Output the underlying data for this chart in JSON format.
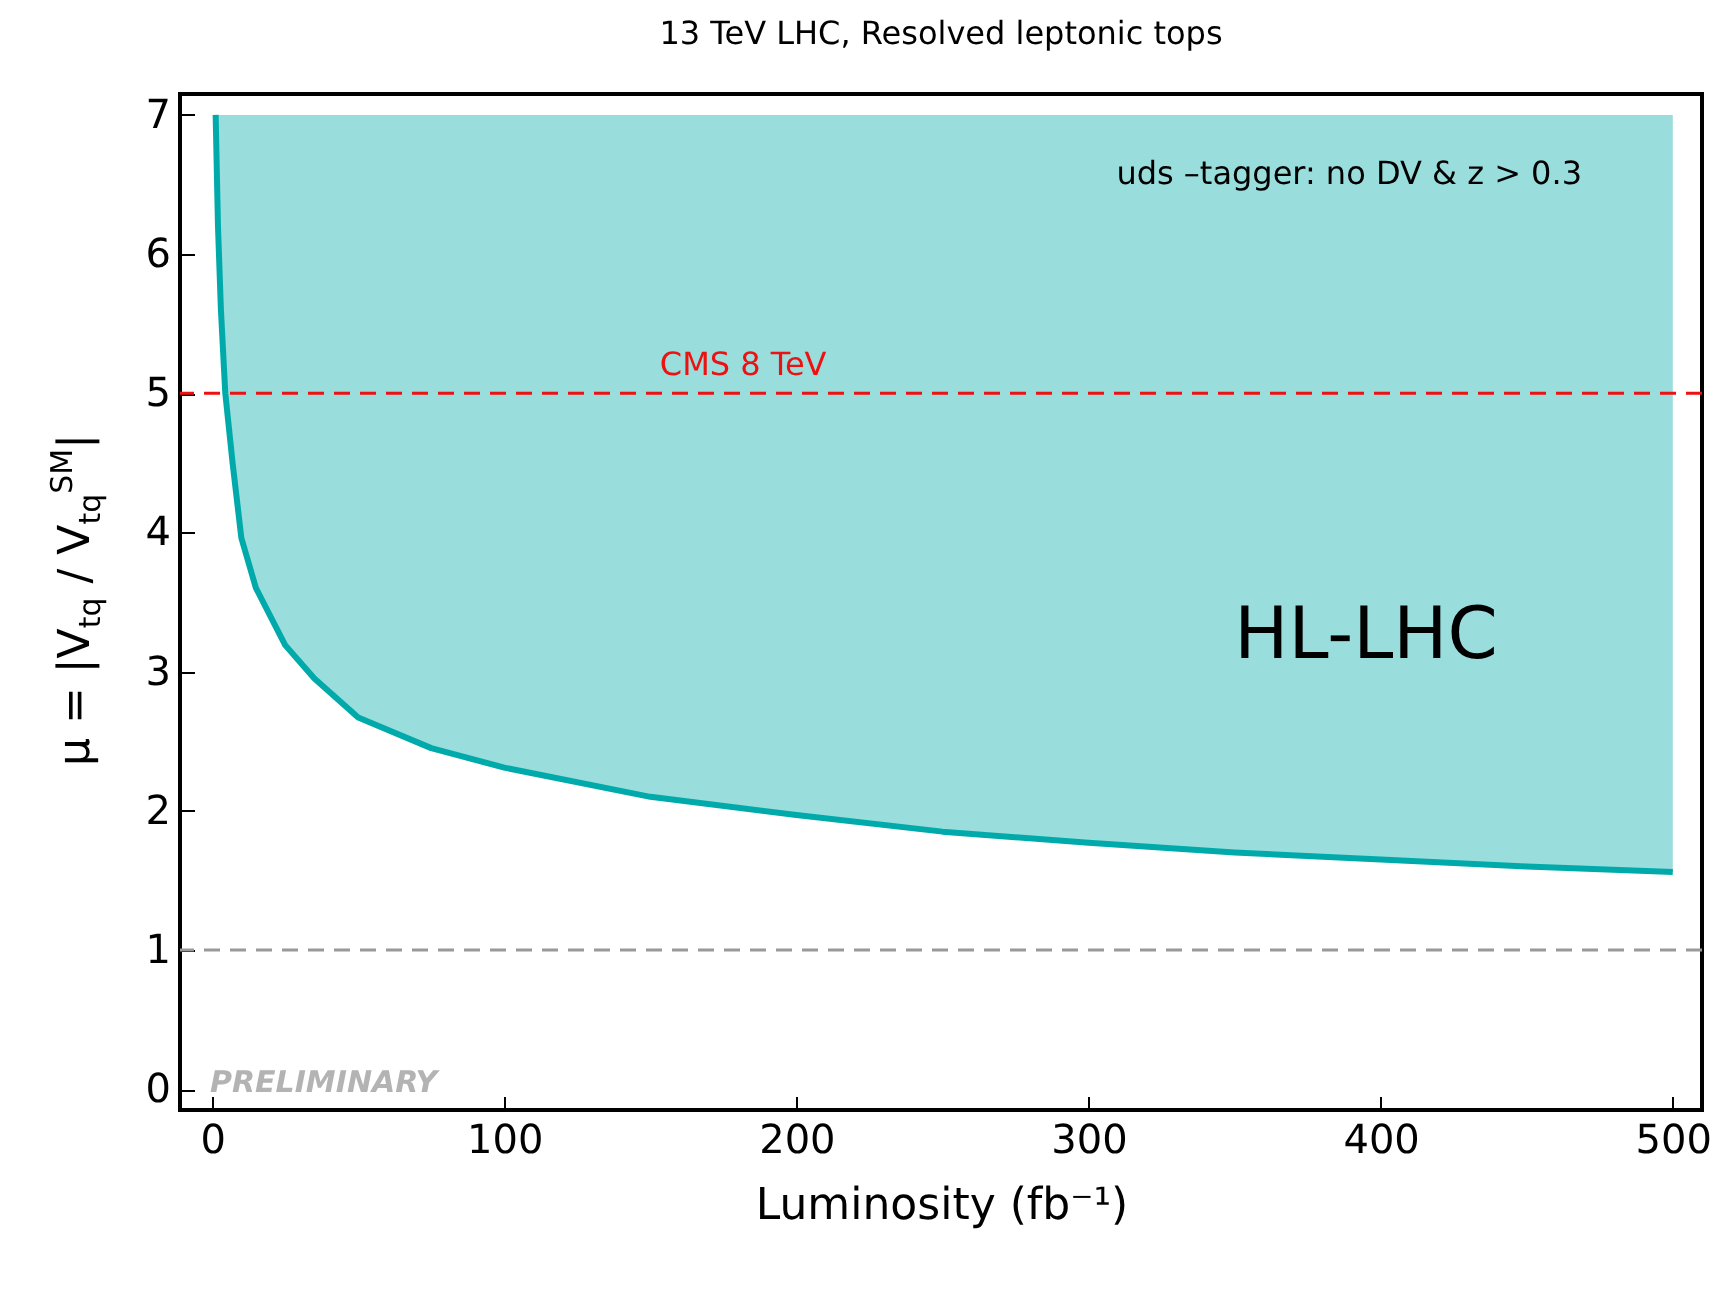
{
  "chart_data": {
    "type": "line",
    "title": "13 TeV  LHC, Resolved leptonic tops",
    "xlabel": "Luminosity (fb⁻¹)",
    "ylabel": "μ = |V$_{tq}$ / V$_{tq}$$^{SM}$|",
    "x": [
      1.2,
      2,
      3,
      4.5,
      7,
      10,
      15,
      25,
      35,
      50,
      75,
      100,
      150,
      200,
      250,
      300,
      350,
      400,
      450,
      500
    ],
    "series": [
      {
        "color": "#00aaaa",
        "values": [
          7.0,
          6.2,
          5.6,
          5.0,
          4.5,
          3.96,
          3.6,
          3.19,
          2.95,
          2.67,
          2.45,
          2.31,
          2.1,
          1.97,
          1.85,
          1.77,
          1.7,
          1.65,
          1.6,
          1.56
        ],
        "lower": [
          7.0,
          6.2,
          5.6,
          5.0,
          4.5,
          3.96,
          3.6,
          3.19,
          2.95,
          2.67,
          2.45,
          2.31,
          2.1,
          1.97,
          1.85,
          1.77,
          1.7,
          1.65,
          1.6,
          1.56
        ],
        "upper": [
          7,
          7,
          7,
          7,
          7,
          7,
          7,
          7,
          7,
          7,
          7,
          7,
          7,
          7,
          7,
          7,
          7,
          7,
          7,
          7
        ]
      }
    ],
    "ref_lines": [
      {
        "axis": "y",
        "value": 5,
        "label": "CMS 8 TeV",
        "color": "#ee1111",
        "line_style": "dashed"
      },
      {
        "axis": "y",
        "value": 1,
        "label": null,
        "color": "#999999",
        "line_style": "dashed"
      }
    ],
    "annotations": [
      "uds –tagger:  no DV &  z  > 0.3",
      "PRELIMINARY",
      "HL-LHC"
    ],
    "xlim": [
      -11,
      510
    ],
    "ylim": [
      -0.15,
      7.15
    ],
    "xticks": [
      0,
      100,
      200,
      300,
      400,
      500
    ],
    "yticks": [
      0,
      1,
      2,
      3,
      4,
      5,
      6,
      7
    ],
    "grid": false,
    "line_style": "solid",
    "marker": "none"
  }
}
